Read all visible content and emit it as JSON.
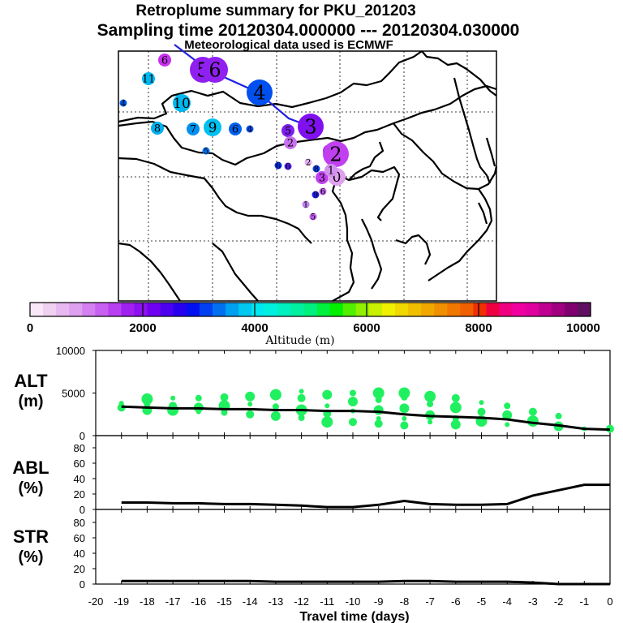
{
  "header": {
    "title_line1": "Retroplume summary for PKU_201203",
    "title_line2": "Sampling time   20120304.000000 --- 20120304.030000",
    "title_line3": "Meteorological data used is ECMWF"
  },
  "colorbar": {
    "label": "Altitude (m)",
    "ticks": [
      "0",
      "2000",
      "4000",
      "6000",
      "8000",
      "10000"
    ],
    "colors": [
      "#f8e8f8",
      "#f0d0f0",
      "#e8b8f0",
      "#e0a0f0",
      "#d480f0",
      "#c860f0",
      "#b840f0",
      "#a020f0",
      "#8c10f0",
      "#7000f0",
      "#4c00f0",
      "#2800f0",
      "#0010f0",
      "#0040f0",
      "#0070f0",
      "#00a0f0",
      "#00c8f0",
      "#00e8f0",
      "#00f0e0",
      "#00f0c0",
      "#00f0a0",
      "#00f080",
      "#00f040",
      "#00f000",
      "#50f000",
      "#90f000",
      "#c8f000",
      "#f0f000",
      "#f0d800",
      "#f0c000",
      "#f0a800",
      "#f09000",
      "#f07800",
      "#f06000",
      "#f03000",
      "#f00040",
      "#f00080",
      "#f000a0",
      "#e000a0",
      "#c00090",
      "#a00080",
      "#800070",
      "#601060"
    ]
  },
  "map": {
    "markers": [
      {
        "label": "6",
        "color": "#c830f0",
        "size": "m"
      },
      {
        "label": "5",
        "color": "#9020f0",
        "size": "xl"
      },
      {
        "label": "6",
        "color": "#9020f0",
        "size": "xl"
      },
      {
        "label": "11",
        "color": "#00b8f0",
        "size": "m"
      },
      {
        "label": "4",
        "color": "#0050f0",
        "size": "xl"
      },
      {
        "label": "4",
        "color": "#0060f0",
        "size": "s"
      },
      {
        "label": "10",
        "color": "#00b8f0",
        "size": "l"
      },
      {
        "label": "8",
        "color": "#00b0f0",
        "size": "m"
      },
      {
        "label": "7",
        "color": "#0090f0",
        "size": "m"
      },
      {
        "label": "9",
        "color": "#00c0f0",
        "size": "l"
      },
      {
        "label": "6",
        "color": "#0060f0",
        "size": "m"
      },
      {
        "label": "4",
        "color": "#0050f0",
        "size": "s"
      },
      {
        "label": "5",
        "color": "#0070f0",
        "size": "s"
      },
      {
        "label": "3",
        "color": "#8010f0",
        "size": "xl"
      },
      {
        "label": "5",
        "color": "#8020f0",
        "size": "m"
      },
      {
        "label": "4",
        "color": "#9020f0",
        "size": "m"
      },
      {
        "label": "2",
        "color": "#c040f0",
        "size": "xl"
      },
      {
        "label": "3",
        "color": "#c040f0",
        "size": "m"
      },
      {
        "label": "0",
        "color": "#e0a0f0",
        "size": "l"
      },
      {
        "label": "1",
        "color": "#d490f0",
        "size": "m"
      },
      {
        "label": "2",
        "color": "#c870f0",
        "size": "m"
      },
      {
        "label": "6",
        "color": "#5020f0",
        "size": "s"
      },
      {
        "label": "6",
        "color": "#0030f0",
        "size": "s"
      },
      {
        "label": "8",
        "color": "#0040f0",
        "size": "s"
      },
      {
        "label": "9",
        "color": "#2020f0",
        "size": "s"
      },
      {
        "label": "1",
        "color": "#c080f0",
        "size": "s"
      },
      {
        "label": "5",
        "color": "#c060f0",
        "size": "s"
      },
      {
        "label": "6",
        "color": "#c060f0",
        "size": "s"
      },
      {
        "label": "2",
        "color": "#e0b0f0",
        "size": "s"
      }
    ]
  },
  "chart_data": [
    {
      "type": "scatter",
      "panel": "ALT",
      "ylabel_line1": "ALT",
      "ylabel_line2": "(m)",
      "ylim": [
        0,
        10000
      ],
      "ytick_labels": [
        "10000",
        "5000",
        "0"
      ],
      "x": [
        -19,
        -18,
        -17,
        -16,
        -15,
        -14,
        -13,
        -12,
        -11,
        -10,
        -9,
        -8,
        -7,
        -6,
        -5,
        -4,
        -3,
        -2,
        -1,
        0
      ],
      "series": [
        {
          "name": "median altitude",
          "values": [
            3400,
            3300,
            3200,
            3200,
            3100,
            3100,
            3000,
            3000,
            2900,
            2900,
            2800,
            2500,
            2300,
            2200,
            2100,
            1900,
            1500,
            1200,
            800,
            700
          ]
        }
      ],
      "points": [
        [
          -19,
          3800
        ],
        [
          -19,
          3300
        ],
        [
          -18,
          4300
        ],
        [
          -18,
          3700
        ],
        [
          -18,
          3000
        ],
        [
          -17,
          4400
        ],
        [
          -17,
          3500
        ],
        [
          -17,
          3000
        ],
        [
          -16,
          4400
        ],
        [
          -16,
          3300
        ],
        [
          -16,
          2800
        ],
        [
          -15,
          4500
        ],
        [
          -15,
          3500
        ],
        [
          -15,
          2700
        ],
        [
          -14,
          4600
        ],
        [
          -14,
          3700
        ],
        [
          -14,
          2500
        ],
        [
          -13,
          4800
        ],
        [
          -13,
          3400
        ],
        [
          -13,
          2300
        ],
        [
          -12,
          5200
        ],
        [
          -12,
          4400
        ],
        [
          -12,
          3000
        ],
        [
          -12,
          2100
        ],
        [
          -11,
          4800
        ],
        [
          -11,
          3500
        ],
        [
          -11,
          2600
        ],
        [
          -11,
          1600
        ],
        [
          -10,
          5000
        ],
        [
          -10,
          4000
        ],
        [
          -10,
          2900
        ],
        [
          -10,
          1600
        ],
        [
          -9,
          5000
        ],
        [
          -9,
          4200
        ],
        [
          -9,
          3000
        ],
        [
          -9,
          2000
        ],
        [
          -9,
          1400
        ],
        [
          -8,
          5000
        ],
        [
          -8,
          4500
        ],
        [
          -8,
          3200
        ],
        [
          -8,
          2000
        ],
        [
          -8,
          1200
        ],
        [
          -7,
          4600
        ],
        [
          -7,
          3700
        ],
        [
          -7,
          2400
        ],
        [
          -7,
          1600
        ],
        [
          -6,
          4400
        ],
        [
          -6,
          3300
        ],
        [
          -6,
          2000
        ],
        [
          -6,
          1300
        ],
        [
          -5,
          3900
        ],
        [
          -5,
          2800
        ],
        [
          -5,
          1700
        ],
        [
          -4,
          3500
        ],
        [
          -4,
          2400
        ],
        [
          -4,
          1300
        ],
        [
          -3,
          2800
        ],
        [
          -3,
          1700
        ],
        [
          -2,
          2300
        ],
        [
          -2,
          1100
        ],
        [
          -1,
          800
        ],
        [
          0,
          800
        ]
      ],
      "point_color": "#20f060"
    },
    {
      "type": "line",
      "panel": "ABL",
      "ylabel_line1": "ABL",
      "ylabel_line2": "(%)",
      "ylim": [
        0,
        100
      ],
      "ytick_labels": [
        "80",
        "60",
        "40",
        "20",
        "0"
      ],
      "x": [
        -19,
        -18,
        -17,
        -16,
        -15,
        -14,
        -13,
        -12,
        -11,
        -10,
        -9,
        -8,
        -7,
        -6,
        -5,
        -4,
        -3,
        -2,
        -1,
        0
      ],
      "series": [
        {
          "name": "ABL fraction",
          "values": [
            9,
            9,
            8,
            8,
            7,
            7,
            6,
            5,
            3,
            3,
            6,
            11,
            7,
            6,
            6,
            7,
            18,
            25,
            32,
            32
          ]
        }
      ]
    },
    {
      "type": "line",
      "panel": "STR",
      "ylabel_line1": "STR",
      "ylabel_line2": "(%)",
      "ylim": [
        0,
        100
      ],
      "ytick_labels": [
        "80",
        "60",
        "40",
        "20",
        "0"
      ],
      "x": [
        -19,
        -18,
        -17,
        -16,
        -15,
        -14,
        -13,
        -12,
        -11,
        -10,
        -9,
        -8,
        -7,
        -6,
        -5,
        -4,
        -3,
        -2,
        -1,
        0
      ],
      "series": [
        {
          "name": "stratospheric fraction",
          "values": [
            4,
            4,
            4,
            4,
            4,
            4,
            3,
            3,
            3,
            3,
            3,
            4,
            4,
            3,
            3,
            3,
            2,
            0,
            0,
            0
          ]
        }
      ],
      "xlabel": "Travel time (days)",
      "xtick_labels": [
        "-20",
        "-19",
        "-18",
        "-17",
        "-16",
        "-15",
        "-14",
        "-13",
        "-12",
        "-11",
        "-10",
        "-9",
        "-8",
        "-7",
        "-6",
        "-5",
        "-4",
        "-3",
        "-2",
        "-1",
        "0"
      ]
    }
  ]
}
